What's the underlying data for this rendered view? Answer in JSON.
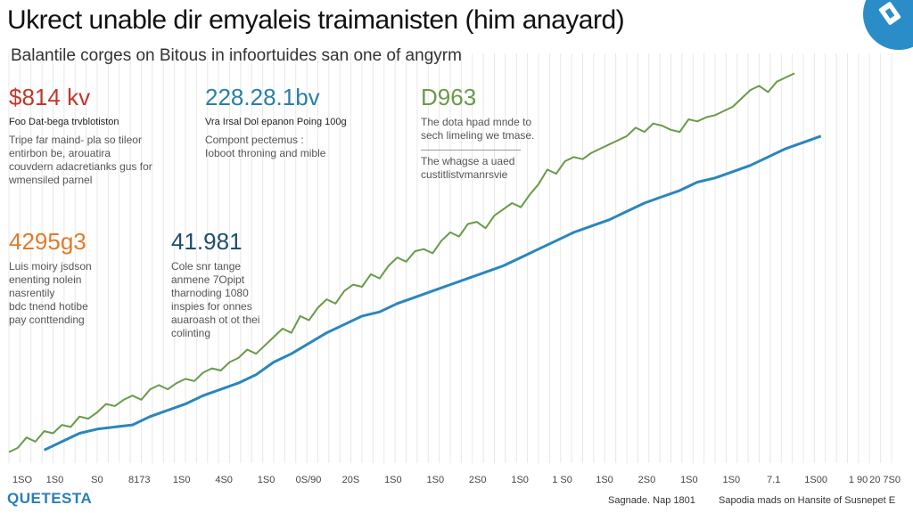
{
  "header": {
    "title": "Ukrect unable dir emyaleis traimanisten (him anayard)",
    "subtitle": "Balantile corges on Bitous in infoortuides san one of angyrm"
  },
  "stats": [
    {
      "value": "$814 kv",
      "label": "Foo Dat-bega trvblotiston",
      "desc": "Tripe far maind- pla so tileor\nentirbon be, arouatira\ncouvdern adacretianks gus for\nwmensiled parnel",
      "color": "#c0392b"
    },
    {
      "value": "228.28.1bv",
      "label": "Vra Irsal Dol epanon Poing 100g",
      "desc": "Compont pectemus :\nIoboot throning and mible",
      "color": "#2a7fa8"
    },
    {
      "value": "D963",
      "label": "",
      "desc": "The dota hpad mnde to\nsech limeling we tmase.",
      "desc2": "The whagse a uaed\ncustitlistvmanrsvie",
      "color": "#6a9a4a"
    },
    {
      "value": "4295g3",
      "label": "",
      "desc": "Luis moiry jsdson\nenenting nolein\nnasrentily\nbdc tnend hotibe\npay conttending",
      "color": "#e07b2a"
    },
    {
      "value": "41.981",
      "label": "",
      "desc": "Cole snr tange\nanmene 7Opipt\ntharnoding 1080\ninspies for onnes\nauaroash ot ot thei\ncolinting",
      "color": "#1f4e6e"
    }
  ],
  "footer": {
    "logo": "QUETESTA",
    "source_left": "Sagnade. Nap 1801",
    "source_right": "Sapodia mads on Hansite of Susnepet E"
  },
  "colors": {
    "green_series": "#6a9a4a",
    "blue_series": "#2a86bd",
    "grid": "#d6d6d6"
  },
  "chart_data": {
    "type": "line",
    "title": "Ukrect unable dir emyaleis traimanisten (him anayard)",
    "subtitle": "Balantile corges on Bitous in infoortuides san one of angyrm",
    "x_tick_labels": [
      "1SO",
      "1S0",
      "S0",
      "8173",
      "1S0",
      "4S0",
      "1S0",
      "0S/90",
      "20S",
      "1S0",
      "1S0",
      "2S0",
      "1S0",
      "1 S0",
      "1S0",
      "2S0",
      "1S0",
      "1S0",
      "7.1",
      "1S00",
      "1 90",
      "20 7S0"
    ],
    "xlim": [
      0,
      100
    ],
    "ylim": [
      0,
      100
    ],
    "grid": true,
    "series": [
      {
        "name": "green",
        "x": [
          0,
          1,
          2,
          3,
          4,
          5,
          6,
          7,
          8,
          9,
          10,
          11,
          12,
          13,
          14,
          15,
          16,
          17,
          18,
          19,
          20,
          21,
          22,
          23,
          24,
          25,
          26,
          27,
          28,
          29,
          30,
          31,
          32,
          33,
          34,
          35,
          36,
          37,
          38,
          39,
          40,
          41,
          42,
          43,
          44,
          45,
          46,
          47,
          48,
          49,
          50,
          51,
          52,
          53,
          54,
          55,
          56,
          57,
          58,
          59,
          60,
          61,
          62,
          63,
          64,
          65,
          66,
          67,
          68,
          69,
          70,
          71,
          72,
          73,
          74,
          75,
          76,
          77,
          78,
          79,
          80,
          81,
          82,
          83,
          84,
          85,
          86,
          87,
          88,
          89
        ],
        "values": [
          0.5,
          1.5,
          4,
          3,
          5.5,
          5,
          7,
          6.5,
          9,
          8.5,
          10,
          12,
          11.5,
          13,
          14,
          13,
          15.5,
          16.5,
          15.5,
          17,
          18,
          17.5,
          19.5,
          20.5,
          20,
          22,
          23,
          25,
          24,
          26,
          28,
          30,
          29,
          33,
          32,
          35,
          37,
          36,
          39,
          40.5,
          40,
          43,
          42,
          45,
          47,
          46,
          48.5,
          49,
          48,
          51,
          53,
          52,
          55,
          55.5,
          54,
          57,
          58.5,
          60,
          59,
          62,
          64.5,
          68,
          67,
          70,
          71,
          70.5,
          72,
          73,
          74,
          75,
          76,
          78,
          77,
          79,
          78.5,
          77.5,
          77,
          80,
          79.5,
          80.5,
          81,
          82,
          83,
          85,
          87,
          88,
          86.5,
          89,
          90,
          91
        ]
      },
      {
        "name": "blue",
        "x": [
          4,
          6,
          8,
          10,
          12,
          14,
          16,
          18,
          20,
          22,
          24,
          26,
          28,
          30,
          32,
          34,
          36,
          38,
          40,
          42,
          44,
          46,
          48,
          50,
          52,
          54,
          56,
          58,
          60,
          62,
          64,
          66,
          68,
          70,
          72,
          74,
          76,
          78,
          80,
          82,
          84,
          86,
          88,
          90,
          92
        ],
        "values": [
          1,
          3,
          5,
          6,
          6.5,
          7,
          9,
          10.5,
          12,
          14,
          15.5,
          17,
          19,
          22,
          24,
          26.5,
          29,
          31,
          33,
          34,
          36,
          37.5,
          39,
          40.5,
          42,
          43.5,
          45,
          47,
          49,
          51,
          53,
          54.5,
          56,
          58,
          60,
          61.5,
          63,
          65,
          66,
          67.5,
          69,
          71,
          73,
          74.5,
          76
        ]
      }
    ]
  }
}
